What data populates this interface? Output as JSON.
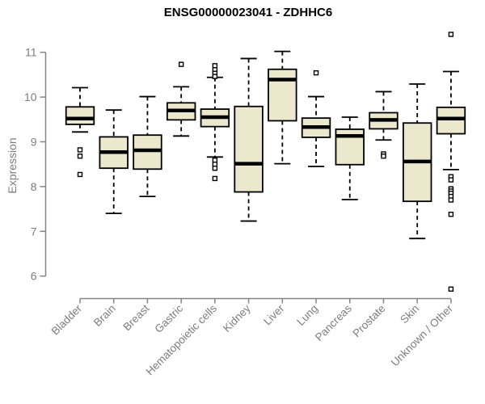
{
  "chart_data": {
    "type": "boxplot",
    "title": "ENSG00000023041 - ZDHHC6",
    "ylabel": "Expression",
    "xlabel": "",
    "ylim": [
      6,
      11
    ],
    "yticks": [
      6,
      7,
      8,
      9,
      10,
      11
    ],
    "grid": false,
    "colors": {
      "box_fill": "#ECE8CD",
      "box_border": "#000000",
      "axis": "#858585",
      "tick_label": "#7d7d7d",
      "title": "#000000"
    },
    "series": [
      {
        "name": "Bladder",
        "whisker_low": 9.22,
        "q1": 9.39,
        "median": 9.52,
        "q3": 9.78,
        "whisker_high": 10.21,
        "outliers": [
          8.82,
          8.68,
          8.27
        ]
      },
      {
        "name": "Brain",
        "whisker_low": 7.4,
        "q1": 8.41,
        "median": 8.77,
        "q3": 9.11,
        "whisker_high": 9.71,
        "outliers": []
      },
      {
        "name": "Breast",
        "whisker_low": 7.78,
        "q1": 8.39,
        "median": 8.81,
        "q3": 9.15,
        "whisker_high": 10.01,
        "outliers": []
      },
      {
        "name": "Gastric",
        "whisker_low": 9.13,
        "q1": 9.49,
        "median": 9.7,
        "q3": 9.87,
        "whisker_high": 10.23,
        "outliers": [
          10.73
        ]
      },
      {
        "name": "Hematopoietic cells",
        "whisker_low": 8.66,
        "q1": 9.34,
        "median": 9.55,
        "q3": 9.73,
        "whisker_high": 10.44,
        "outliers": [
          10.7,
          10.61,
          10.53,
          10.46,
          8.59,
          8.5,
          8.41,
          8.18
        ]
      },
      {
        "name": "Kidney",
        "whisker_low": 7.23,
        "q1": 7.88,
        "median": 8.51,
        "q3": 9.79,
        "whisker_high": 10.86,
        "outliers": []
      },
      {
        "name": "Liver",
        "whisker_low": 8.51,
        "q1": 9.47,
        "median": 10.39,
        "q3": 10.62,
        "whisker_high": 11.02,
        "outliers": []
      },
      {
        "name": "Lung",
        "whisker_low": 8.45,
        "q1": 9.1,
        "median": 9.33,
        "q3": 9.53,
        "whisker_high": 10.01,
        "outliers": [
          10.54
        ]
      },
      {
        "name": "Pancreas",
        "whisker_low": 7.71,
        "q1": 8.49,
        "median": 9.13,
        "q3": 9.28,
        "whisker_high": 9.55,
        "outliers": []
      },
      {
        "name": "Prostate",
        "whisker_low": 9.04,
        "q1": 9.29,
        "median": 9.49,
        "q3": 9.65,
        "whisker_high": 10.12,
        "outliers": [
          8.73,
          8.68
        ]
      },
      {
        "name": "Skin",
        "whisker_low": 6.84,
        "q1": 7.67,
        "median": 8.56,
        "q3": 9.42,
        "whisker_high": 10.29,
        "outliers": []
      },
      {
        "name": "Unknown / Other",
        "whisker_low": 8.38,
        "q1": 9.18,
        "median": 9.52,
        "q3": 9.77,
        "whisker_high": 10.57,
        "outliers": [
          11.4,
          8.22,
          8.15,
          7.95,
          7.9,
          7.85,
          7.78,
          7.7,
          7.38,
          5.71
        ]
      }
    ]
  }
}
